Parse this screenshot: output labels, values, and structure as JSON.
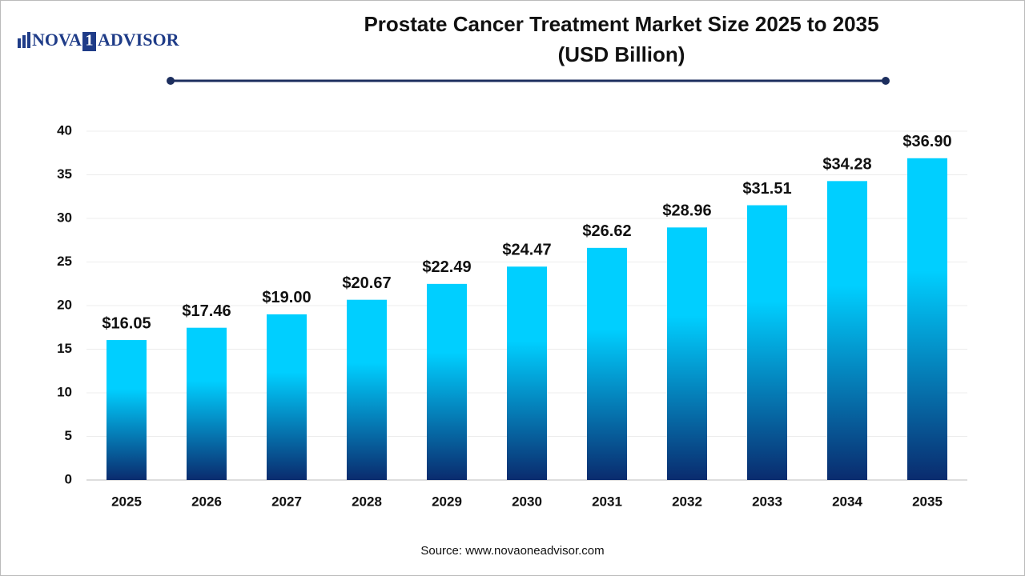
{
  "chart_data": {
    "type": "bar",
    "logo": {
      "left": "NOVA",
      "mid": "1",
      "right": "ADVISOR"
    },
    "title": "Prostate Cancer Treatment Market Size  2025 to 2035",
    "subtitle": "(USD Billion)",
    "source": "Source: www.novaoneadvisor.com",
    "categories": [
      "2025",
      "2026",
      "2027",
      "2028",
      "2029",
      "2030",
      "2031",
      "2032",
      "2033",
      "2034",
      "2035"
    ],
    "values": [
      16.05,
      17.46,
      19.0,
      20.67,
      22.49,
      24.47,
      26.62,
      28.96,
      31.51,
      34.28,
      36.9
    ],
    "value_labels": [
      "$16.05",
      "$17.46",
      "$19.00",
      "$20.67",
      "$22.49",
      "$24.47",
      "$26.62",
      "$28.96",
      "$31.51",
      "$34.28",
      "$36.90"
    ],
    "colors": [
      "#00cfff",
      "#0a2b6e"
    ],
    "ylim": [
      0,
      40
    ],
    "yticks": [
      0,
      5,
      10,
      15,
      20,
      25,
      30,
      35,
      40
    ],
    "grid": true
  }
}
